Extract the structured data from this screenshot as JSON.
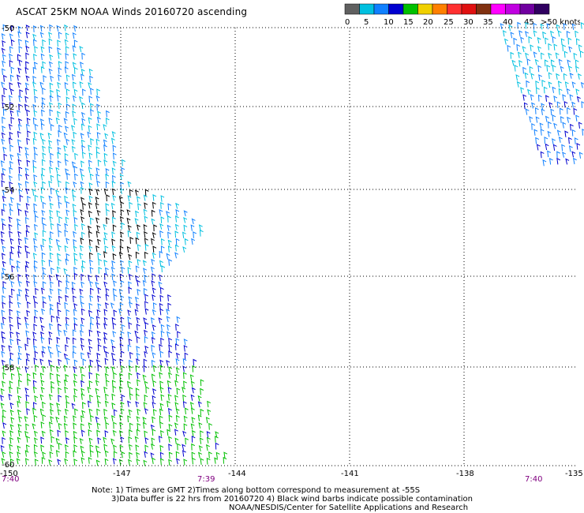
{
  "title": "ASCAT 25KM NOAA Winds 20160720 ascending",
  "colorbar": {
    "colors": [
      "#606060",
      "#00c0e0",
      "#1080ff",
      "#0000d0",
      "#00c000",
      "#f0d000",
      "#ff8000",
      "#ff3030",
      "#e01010",
      "#803010",
      "#ff00ff",
      "#c000e0",
      "#7000a0",
      "#300060"
    ],
    "tick_labels": [
      "0",
      "5",
      "10",
      "15",
      "20",
      "25",
      "30",
      "35",
      "40",
      "45",
      ">50 knots"
    ]
  },
  "latitude_labels": [
    "-50",
    "-52",
    "-54",
    "-56",
    "-58",
    "-60"
  ],
  "longitude_labels": [
    "-150",
    "-147",
    "-144",
    "-141",
    "-138",
    "-135"
  ],
  "time_labels": [
    "7:40",
    "7:39",
    "7:40"
  ],
  "notes": [
    "Note: 1) Times are GMT 2)Times along bottom correspond to measurement at -55S",
    "3)Data buffer is 22 hrs from 20160720 4) Black wind barbs indicate possible contamination",
    "NOAA/NESDIS/Center for Satellite Applications and Research"
  ],
  "barb_colors": {
    "low": "#00c0e0",
    "mid": "#1080ff",
    "high": "#0000d0",
    "strong": "#00c000",
    "contaminated": "#000000"
  }
}
